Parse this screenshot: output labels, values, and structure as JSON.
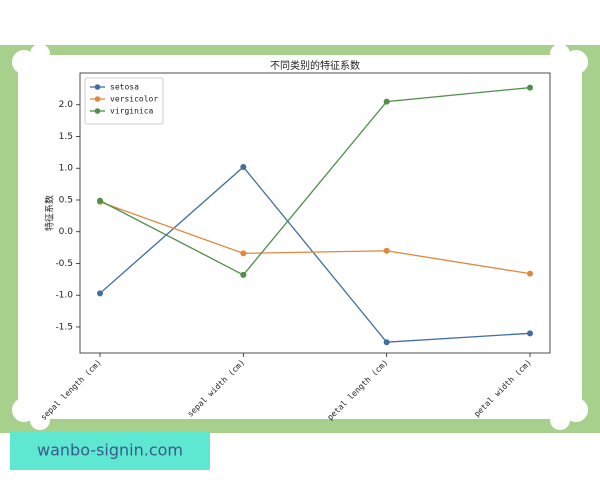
{
  "chart_data": {
    "type": "line",
    "title": "不同类别的特征系数",
    "y_label": "特征系数",
    "categories": [
      "sepal length (cm)",
      "sepal width (cm)",
      "petal length (cm)",
      "petal width (cm)"
    ],
    "series": [
      {
        "name": "setosa",
        "color": "#3f6f9f",
        "values": [
          -0.97,
          1.02,
          -1.74,
          -1.6
        ]
      },
      {
        "name": "versicolor",
        "color": "#e0883e",
        "values": [
          0.47,
          -0.34,
          -0.3,
          -0.66
        ]
      },
      {
        "name": "virginica",
        "color": "#4f8f4a",
        "values": [
          0.49,
          -0.68,
          2.05,
          2.27
        ]
      }
    ],
    "ylim": [
      -1.91,
      2.5
    ],
    "yticks": [
      -1.5,
      {
        "value": -1,
        "label": "-1.0"
      },
      -0.5,
      {
        "value": 0,
        "label": "0.0"
      },
      0.5,
      {
        "value": 1,
        "label": "1.0"
      },
      1.5,
      {
        "value": 2,
        "label": "2.0"
      }
    ],
    "grid": false,
    "legend": "upper-left"
  },
  "watermark": "wanbo-signin.com"
}
